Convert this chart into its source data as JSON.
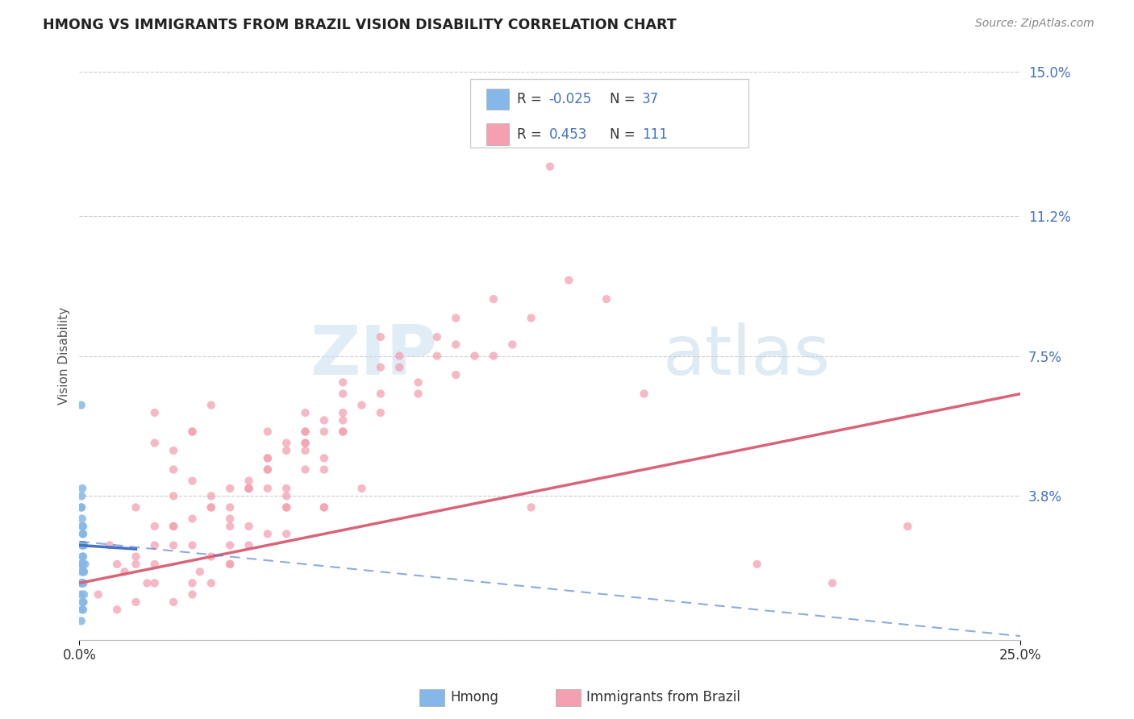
{
  "title": "HMONG VS IMMIGRANTS FROM BRAZIL VISION DISABILITY CORRELATION CHART",
  "source": "Source: ZipAtlas.com",
  "xmin": 0.0,
  "xmax": 25.0,
  "ymin": 0.0,
  "ymax": 15.0,
  "ylabel_ticks": [
    0.0,
    3.8,
    7.5,
    11.2,
    15.0
  ],
  "hmong_color": "#85b8e8",
  "brazil_color": "#f4a0b0",
  "hmong_line_color": "#4472c4",
  "brazil_line_color": "#d9647a",
  "hmong_R": -0.025,
  "hmong_N": 37,
  "brazil_R": 0.453,
  "brazil_N": 111,
  "legend_label_hmong": "Hmong",
  "legend_label_brazil": "Immigrants from Brazil",
  "hmong_scatter_x": [
    0.05,
    0.08,
    0.1,
    0.12,
    0.15,
    0.05,
    0.07,
    0.1,
    0.08,
    0.12,
    0.06,
    0.09,
    0.11,
    0.05,
    0.08,
    0.1,
    0.07,
    0.06,
    0.09,
    0.12,
    0.05,
    0.08,
    0.1,
    0.07,
    0.11,
    0.06,
    0.09,
    0.05,
    0.08,
    0.1,
    0.07,
    0.06,
    0.09,
    0.11,
    0.05,
    0.08,
    0.1
  ],
  "hmong_scatter_y": [
    6.2,
    4.0,
    3.0,
    2.5,
    2.0,
    3.5,
    3.0,
    2.8,
    2.2,
    1.8,
    3.8,
    2.5,
    1.5,
    2.0,
    1.5,
    2.5,
    3.2,
    1.8,
    2.8,
    1.2,
    1.5,
    2.0,
    1.8,
    2.5,
    1.0,
    3.5,
    2.0,
    1.2,
    1.5,
    2.2,
    0.8,
    1.5,
    2.5,
    1.8,
    0.5,
    1.0,
    0.8
  ],
  "brazil_scatter_x": [
    0.5,
    1.2,
    1.8,
    2.5,
    3.0,
    1.0,
    2.0,
    3.5,
    4.0,
    1.5,
    2.5,
    0.8,
    3.2,
    4.5,
    2.0,
    1.5,
    3.0,
    5.0,
    2.5,
    1.0,
    4.0,
    3.5,
    2.0,
    5.5,
    1.5,
    3.0,
    4.5,
    2.5,
    6.0,
    3.0,
    2.0,
    5.0,
    4.0,
    1.5,
    3.5,
    2.5,
    6.5,
    4.5,
    7.0,
    3.0,
    5.5,
    2.0,
    4.0,
    3.5,
    6.0,
    5.0,
    2.5,
    7.5,
    4.0,
    3.0,
    6.5,
    5.5,
    2.0,
    4.5,
    3.5,
    7.0,
    6.0,
    2.5,
    5.0,
    4.0,
    8.0,
    5.5,
    3.0,
    6.5,
    4.5,
    3.5,
    7.0,
    6.0,
    5.5,
    8.5,
    4.0,
    6.5,
    5.0,
    9.0,
    7.0,
    4.5,
    6.0,
    5.5,
    8.0,
    10.0,
    6.5,
    5.0,
    9.5,
    7.5,
    11.0,
    8.0,
    6.0,
    10.5,
    9.0,
    5.5,
    12.0,
    7.0,
    6.5,
    11.5,
    10.0,
    5.0,
    13.0,
    8.5,
    7.0,
    12.5,
    9.5,
    6.0,
    14.0,
    11.0,
    8.0,
    15.0,
    10.0,
    12.0,
    18.0,
    20.0,
    22.0
  ],
  "brazil_scatter_y": [
    1.2,
    1.8,
    1.5,
    3.0,
    2.5,
    0.8,
    2.0,
    1.5,
    3.5,
    1.0,
    3.8,
    2.5,
    1.8,
    4.0,
    5.2,
    2.2,
    1.2,
    4.8,
    3.0,
    2.0,
    2.5,
    6.2,
    1.5,
    3.5,
    2.0,
    4.2,
    3.0,
    1.0,
    5.5,
    3.2,
    2.5,
    4.5,
    2.0,
    3.5,
    2.2,
    5.0,
    3.5,
    2.5,
    6.8,
    1.5,
    4.0,
    3.0,
    2.0,
    3.8,
    5.2,
    2.8,
    4.5,
    4.0,
    3.2,
    5.5,
    3.5,
    2.8,
    6.0,
    4.2,
    3.5,
    5.8,
    4.5,
    2.5,
    4.0,
    3.0,
    7.2,
    3.5,
    5.5,
    4.5,
    4.0,
    3.5,
    5.5,
    5.0,
    3.8,
    7.5,
    4.0,
    4.8,
    4.5,
    6.5,
    5.5,
    4.0,
    5.2,
    5.0,
    6.0,
    7.8,
    5.5,
    4.8,
    8.0,
    6.2,
    9.0,
    6.5,
    5.5,
    7.5,
    6.8,
    5.2,
    8.5,
    6.0,
    5.8,
    7.8,
    7.0,
    5.5,
    9.5,
    7.2,
    6.5,
    12.5,
    7.5,
    6.0,
    9.0,
    7.5,
    8.0,
    6.5,
    8.5,
    3.5,
    2.0,
    1.5,
    3.0
  ],
  "brazil_line_start_x": 0.0,
  "brazil_line_start_y": 1.5,
  "brazil_line_end_x": 25.0,
  "brazil_line_end_y": 6.5,
  "hmong_line_start_x": 0.0,
  "hmong_line_start_y": 2.5,
  "hmong_line_end_x": 1.5,
  "hmong_line_end_y": 2.4,
  "hmong_dash_start_x": 0.0,
  "hmong_dash_start_y": 2.6,
  "hmong_dash_end_x": 25.0,
  "hmong_dash_end_y": 0.1
}
